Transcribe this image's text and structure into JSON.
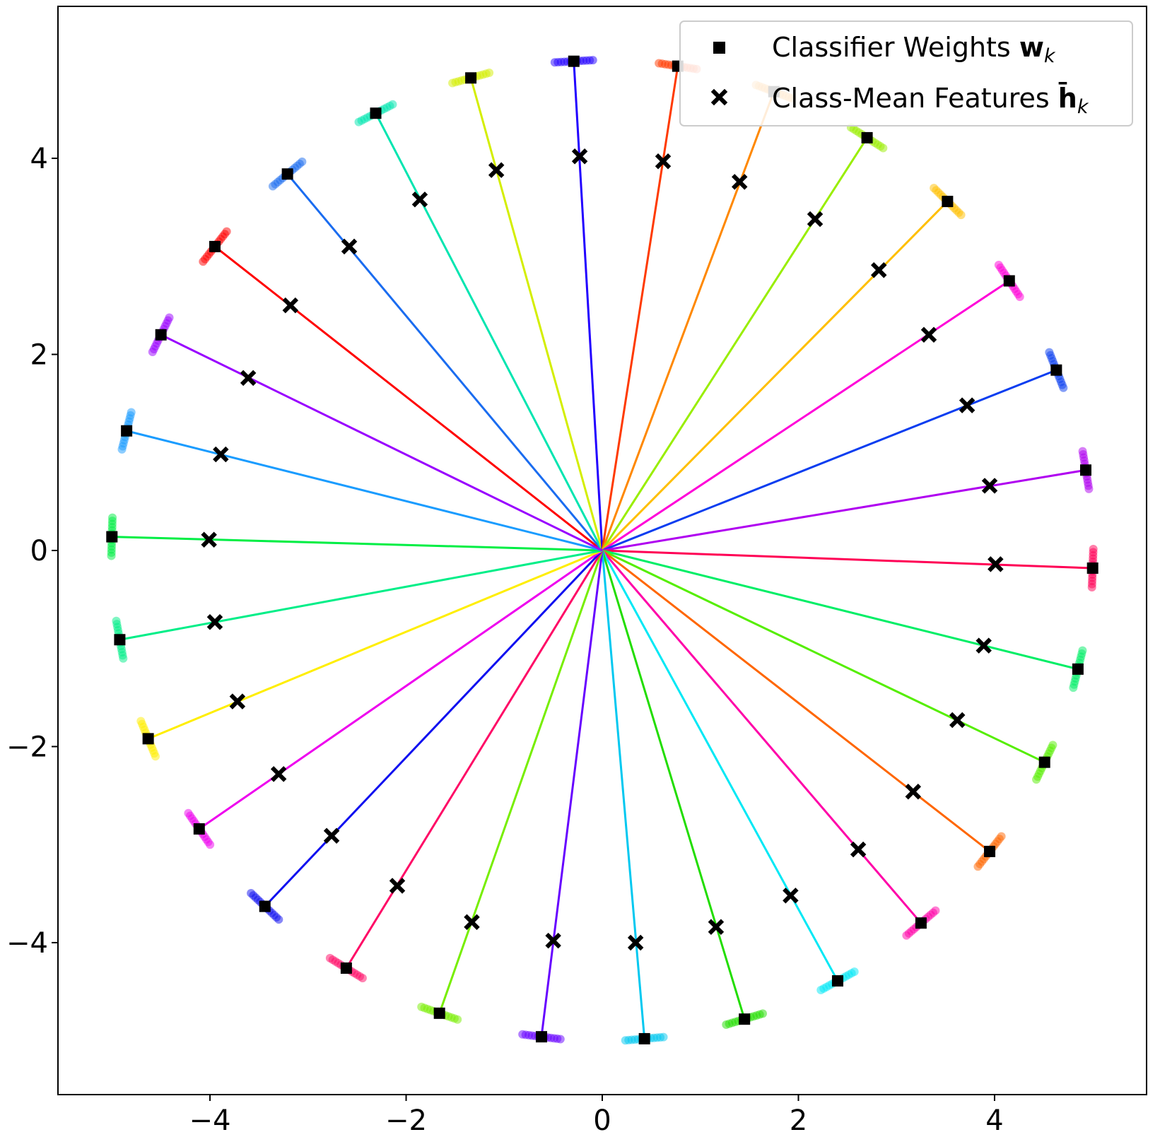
{
  "chart_data": {
    "type": "scatter",
    "title": "",
    "xlabel": "",
    "ylabel": "",
    "xlim": [
      -5.55,
      5.55
    ],
    "ylim": [
      -5.55,
      5.55
    ],
    "xticks": [
      -4,
      -2,
      0,
      2,
      4
    ],
    "yticks": [
      -4,
      -2,
      0,
      2,
      4
    ],
    "xtick_labels": [
      "−4",
      "−2",
      "0",
      "2",
      "4"
    ],
    "ytick_labels": [
      "−4",
      "−2",
      "0",
      "2",
      "4"
    ],
    "grid": false,
    "legend": {
      "placement": "upper-right",
      "entries": [
        {
          "marker": "square",
          "label_text": "Classifier Weights ",
          "label_math": "w",
          "label_sub": "k"
        },
        {
          "marker": "x",
          "label_text": "Class-Mean Features ",
          "label_math": "h̄",
          "label_sub": "k"
        }
      ]
    },
    "series": [
      {
        "color": "#ff0000",
        "weight": [
          -3.95,
          3.1
        ],
        "mean": [
          -3.18,
          2.5
        ]
      },
      {
        "color": "#1a6cf0",
        "weight": [
          -3.21,
          3.84
        ],
        "mean": [
          -2.58,
          3.1
        ]
      },
      {
        "color": "#00e5b0",
        "weight": [
          -2.31,
          4.46
        ],
        "mean": [
          -1.86,
          3.58
        ]
      },
      {
        "color": "#d4ee00",
        "weight": [
          -1.34,
          4.82
        ],
        "mean": [
          -1.08,
          3.88
        ]
      },
      {
        "color": "#2200ff",
        "weight": [
          -0.29,
          4.99
        ],
        "mean": [
          -0.23,
          4.02
        ]
      },
      {
        "color": "#ff3a00",
        "weight": [
          0.77,
          4.94
        ],
        "mean": [
          0.62,
          3.97
        ]
      },
      {
        "color": "#ff8800",
        "weight": [
          1.75,
          4.68
        ],
        "mean": [
          1.4,
          3.76
        ]
      },
      {
        "color": "#99ee00",
        "weight": [
          2.7,
          4.21
        ],
        "mean": [
          2.17,
          3.38
        ]
      },
      {
        "color": "#ffbf00",
        "weight": [
          3.52,
          3.56
        ],
        "mean": [
          2.82,
          2.86
        ]
      },
      {
        "color": "#ff00d8",
        "weight": [
          4.15,
          2.75
        ],
        "mean": [
          3.33,
          2.2
        ]
      },
      {
        "color": "#0a3df0",
        "weight": [
          4.63,
          1.84
        ],
        "mean": [
          3.72,
          1.48
        ]
      },
      {
        "color": "#b000f0",
        "weight": [
          4.93,
          0.82
        ],
        "mean": [
          3.95,
          0.66
        ]
      },
      {
        "color": "#ff0055",
        "weight": [
          5.0,
          -0.18
        ],
        "mean": [
          4.01,
          -0.14
        ]
      },
      {
        "color": "#00ee66",
        "weight": [
          4.85,
          -1.21
        ],
        "mean": [
          3.89,
          -0.97
        ]
      },
      {
        "color": "#55ee00",
        "weight": [
          4.51,
          -2.16
        ],
        "mean": [
          3.62,
          -1.73
        ]
      },
      {
        "color": "#ff6600",
        "weight": [
          3.95,
          -3.07
        ],
        "mean": [
          3.17,
          -2.46
        ]
      },
      {
        "color": "#ff00a8",
        "weight": [
          3.25,
          -3.8
        ],
        "mean": [
          2.61,
          -3.05
        ]
      },
      {
        "color": "#00e8f5",
        "weight": [
          2.4,
          -4.39
        ],
        "mean": [
          1.92,
          -3.52
        ]
      },
      {
        "color": "#22dd00",
        "weight": [
          1.45,
          -4.78
        ],
        "mean": [
          1.16,
          -3.84
        ]
      },
      {
        "color": "#00c8f0",
        "weight": [
          0.43,
          -4.98
        ],
        "mean": [
          0.34,
          -4.0
        ]
      },
      {
        "color": "#6600ff",
        "weight": [
          -0.62,
          -4.96
        ],
        "mean": [
          -0.5,
          -3.98
        ]
      },
      {
        "color": "#77ee00",
        "weight": [
          -1.66,
          -4.72
        ],
        "mean": [
          -1.33,
          -3.79
        ]
      },
      {
        "color": "#ff0a66",
        "weight": [
          -2.61,
          -4.26
        ],
        "mean": [
          -2.09,
          -3.42
        ]
      },
      {
        "color": "#1010f0",
        "weight": [
          -3.44,
          -3.63
        ],
        "mean": [
          -2.76,
          -2.91
        ]
      },
      {
        "color": "#ee00ee",
        "weight": [
          -4.11,
          -2.84
        ],
        "mean": [
          -3.3,
          -2.28
        ]
      },
      {
        "color": "#ffee00",
        "weight": [
          -4.63,
          -1.92
        ],
        "mean": [
          -3.72,
          -1.54
        ]
      },
      {
        "color": "#00ee88",
        "weight": [
          -4.92,
          -0.91
        ],
        "mean": [
          -3.95,
          -0.73
        ]
      },
      {
        "color": "#00ee44",
        "weight": [
          -5.0,
          0.14
        ],
        "mean": [
          -4.01,
          0.11
        ]
      },
      {
        "color": "#1a9cff",
        "weight": [
          -4.85,
          1.22
        ],
        "mean": [
          -3.89,
          0.98
        ]
      },
      {
        "color": "#9900ff",
        "weight": [
          -4.5,
          2.2
        ],
        "mean": [
          -3.61,
          1.76
        ]
      }
    ]
  }
}
